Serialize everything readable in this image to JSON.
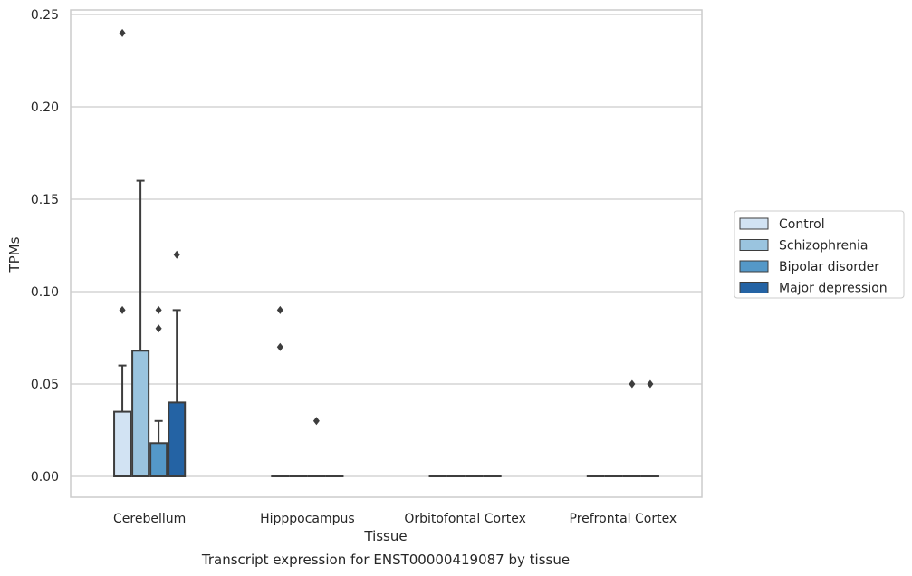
{
  "chart_data": {
    "type": "box",
    "xlabel": "Tissue",
    "ylabel": "TPMs",
    "caption": "Transcript expression for ENST00000419087 by tissue",
    "ylim": [
      -0.012,
      0.252
    ],
    "yticks": [
      0.0,
      0.05,
      0.1,
      0.15,
      0.2,
      0.25
    ],
    "ytick_labels": [
      "0.00",
      "0.05",
      "0.10",
      "0.15",
      "0.20",
      "0.25"
    ],
    "grid": "horizontal",
    "legend_position": "right",
    "categories": [
      "Cerebellum",
      "Hipppocampus",
      "Orbitofontal Cortex",
      "Prefrontal Cortex"
    ],
    "series": [
      {
        "name": "Control",
        "color": "#d2e3f3",
        "boxes": [
          {
            "q1": 0.0,
            "median": 0.0,
            "q3": 0.035,
            "whislo": 0.0,
            "whishi": 0.06,
            "fliers": [
              0.24,
              0.09
            ]
          },
          {
            "q1": 0.0,
            "median": 0.0,
            "q3": 0.0,
            "whislo": 0.0,
            "whishi": 0.0,
            "fliers": [
              0.09,
              0.07
            ]
          },
          {
            "q1": 0.0,
            "median": 0.0,
            "q3": 0.0,
            "whislo": 0.0,
            "whishi": 0.0,
            "fliers": []
          },
          {
            "q1": 0.0,
            "median": 0.0,
            "q3": 0.0,
            "whislo": 0.0,
            "whishi": 0.0,
            "fliers": []
          }
        ]
      },
      {
        "name": "Schizophrenia",
        "color": "#9ac4df",
        "boxes": [
          {
            "q1": 0.0,
            "median": 0.0,
            "q3": 0.068,
            "whislo": 0.0,
            "whishi": 0.16,
            "fliers": []
          },
          {
            "q1": 0.0,
            "median": 0.0,
            "q3": 0.0,
            "whislo": 0.0,
            "whishi": 0.0,
            "fliers": []
          },
          {
            "q1": 0.0,
            "median": 0.0,
            "q3": 0.0,
            "whislo": 0.0,
            "whishi": 0.0,
            "fliers": []
          },
          {
            "q1": 0.0,
            "median": 0.0,
            "q3": 0.0,
            "whislo": 0.0,
            "whishi": 0.0,
            "fliers": []
          }
        ]
      },
      {
        "name": "Bipolar disorder",
        "color": "#5498c8",
        "boxes": [
          {
            "q1": 0.0,
            "median": 0.0,
            "q3": 0.018,
            "whislo": 0.0,
            "whishi": 0.03,
            "fliers": [
              0.09,
              0.08
            ]
          },
          {
            "q1": 0.0,
            "median": 0.0,
            "q3": 0.0,
            "whislo": 0.0,
            "whishi": 0.0,
            "fliers": [
              0.03
            ]
          },
          {
            "q1": 0.0,
            "median": 0.0,
            "q3": 0.0,
            "whislo": 0.0,
            "whishi": 0.0,
            "fliers": []
          },
          {
            "q1": 0.0,
            "median": 0.0,
            "q3": 0.0,
            "whislo": 0.0,
            "whishi": 0.0,
            "fliers": [
              0.05
            ]
          }
        ]
      },
      {
        "name": "Major depression",
        "color": "#2463a4",
        "boxes": [
          {
            "q1": 0.0,
            "median": 0.0,
            "q3": 0.04,
            "whislo": 0.0,
            "whishi": 0.09,
            "fliers": [
              0.12
            ]
          },
          {
            "q1": 0.0,
            "median": 0.0,
            "q3": 0.0,
            "whislo": 0.0,
            "whishi": 0.0,
            "fliers": []
          },
          {
            "q1": 0.0,
            "median": 0.0,
            "q3": 0.0,
            "whislo": 0.0,
            "whishi": 0.0,
            "fliers": []
          },
          {
            "q1": 0.0,
            "median": 0.0,
            "q3": 0.0,
            "whislo": 0.0,
            "whishi": 0.0,
            "fliers": [
              0.05
            ]
          }
        ]
      }
    ]
  },
  "colors": {
    "grid": "#cccccc",
    "frame": "#cccccc",
    "box_edge": "#3d3d3d",
    "text": "#262626"
  }
}
